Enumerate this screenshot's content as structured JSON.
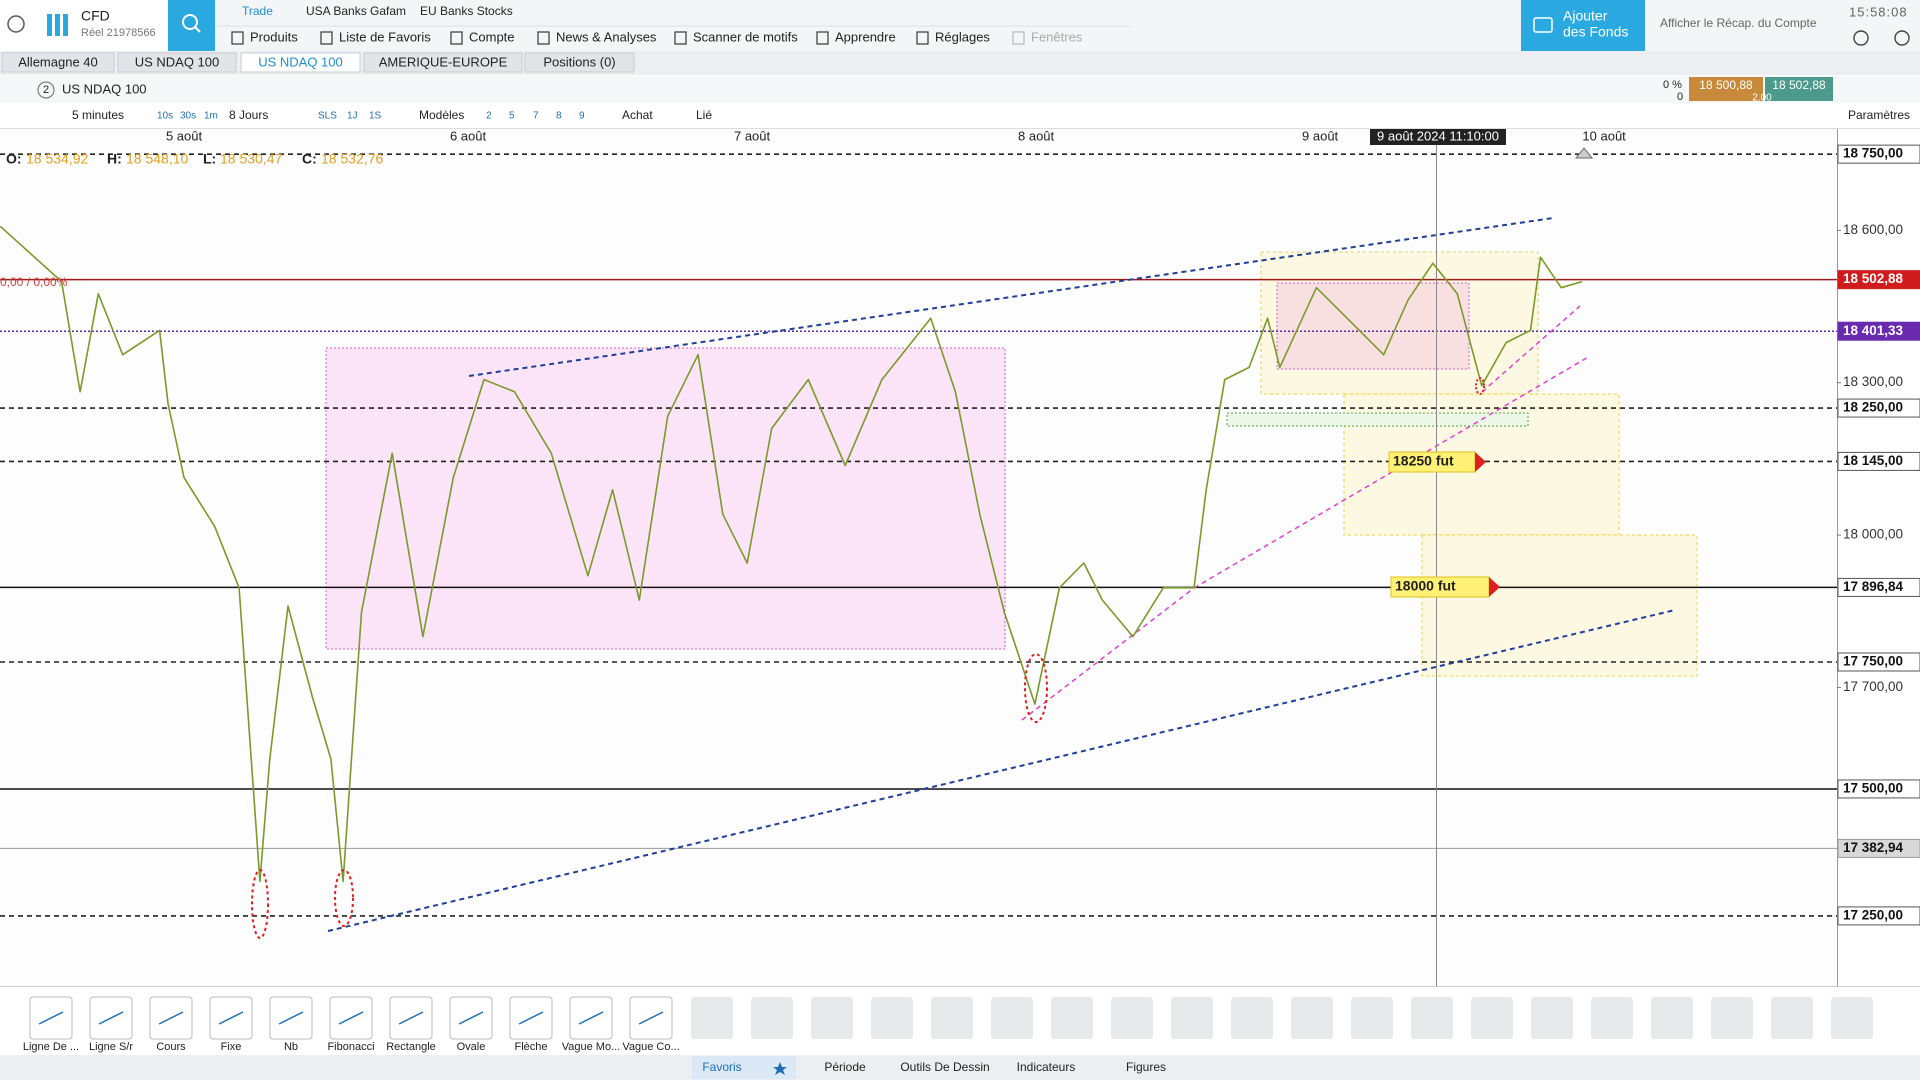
{
  "header": {
    "account_type": "CFD",
    "account_id": "Réel 21978566",
    "tabs": [
      "Trade",
      "USA Banks Gafam",
      "EU Banks Stocks"
    ],
    "menu": [
      "Produits",
      "Liste de Favoris",
      "Compte",
      "News & Analyses",
      "Scanner de motifs",
      "Apprendre",
      "Réglages",
      "Fenêtres"
    ],
    "add_funds": [
      "Ajouter",
      "des Fonds"
    ],
    "summary": "Afficher le Récap. du Compte",
    "clock": "15:58:08"
  },
  "instrument_tabs": [
    "Allemagne 40",
    "US NDAQ 100",
    "US NDAQ 100",
    "AMERIQUE-EUROPE",
    "Positions (0)"
  ],
  "chart_toolbar": {
    "layout_number": "2",
    "instrument": "US NDAQ 100",
    "change_pct": "0 %",
    "change": "0",
    "bid": "18 500,88",
    "ask": "18 502,88",
    "spread": "2.00"
  },
  "chart_subtoolbar": {
    "interval": "5 minutes",
    "quick_intervals": [
      "10s",
      "30s",
      "1m"
    ],
    "range": "8 Jours",
    "periods": [
      "SLS",
      "1J",
      "1S"
    ],
    "templates": "Modèles",
    "layouts": [
      "2",
      "5",
      "7",
      "8",
      "9"
    ],
    "order": "Achat",
    "link": "Lié",
    "settings": "Paramètres"
  },
  "chart_data": {
    "type": "line",
    "color": "#7a9a2a",
    "ohlc": [
      {
        "key": "O:",
        "text": "18 534,92"
      },
      {
        "key": "H:",
        "text": "18 548,10"
      },
      {
        "key": "L:",
        "text": "18 530,47"
      },
      {
        "key": "C:",
        "text": "18 532,76"
      }
    ],
    "change_label": "0,00 / 0,00%",
    "crosshair_label": "9 août 2024 11:10:00",
    "xlim": [
      -0.648,
      5.82
    ],
    "ylim": [
      17112,
      18768
    ],
    "xticks": [
      {
        "value": 0,
        "label": "5 août"
      },
      {
        "value": 1,
        "label": "6 août"
      },
      {
        "value": 2,
        "label": "7 août"
      },
      {
        "value": 3,
        "label": "8 août"
      },
      {
        "value": 4,
        "label": "9 août"
      },
      {
        "value": 5,
        "label": "10 août"
      }
    ],
    "yticks": [
      {
        "value": 18750,
        "label": "18 750,00",
        "line": "dashed",
        "badge": "box"
      },
      {
        "value": 18600,
        "label": "18 600,00"
      },
      {
        "value": 18502.88,
        "label": "18 502,88",
        "line": "solid-red",
        "badge": "red"
      },
      {
        "value": 18401.33,
        "label": "18 401,33",
        "line": "dotted-purple",
        "badge": "purple"
      },
      {
        "value": 18300,
        "label": "18 300,00"
      },
      {
        "value": 18250,
        "label": "18 250,00",
        "line": "dashed",
        "badge": "box"
      },
      {
        "value": 18145,
        "label": "18 145,00",
        "line": "dashed",
        "badge": "box"
      },
      {
        "value": 18000,
        "label": "18 000,00"
      },
      {
        "value": 17896.84,
        "label": "17 896,84",
        "line": "solid",
        "badge": "box"
      },
      {
        "value": 17750,
        "label": "17 750,00",
        "line": "dashed",
        "badge": "box"
      },
      {
        "value": 17700,
        "label": "17 700,00"
      },
      {
        "value": 17500,
        "label": "17 500,00",
        "line": "solid",
        "badge": "box"
      },
      {
        "value": 17382.94,
        "label": "17 382,94",
        "line": "solid-gray",
        "badge": "gray"
      },
      {
        "value": 17250,
        "label": "17 250,00",
        "line": "dashed",
        "badge": "box"
      }
    ],
    "annotations": [
      "18250 fut",
      "18000 fut"
    ],
    "x": [
      -0.647,
      -0.431,
      -0.366,
      -0.302,
      -0.216,
      -0.086,
      -0.056,
      0,
      0.108,
      0.194,
      0.267,
      0.302,
      0.366,
      0.453,
      0.517,
      0.56,
      0.625,
      0.733,
      0.841,
      0.948,
      1.056,
      1.164,
      1.293,
      1.422,
      1.509,
      1.603,
      1.703,
      1.81,
      1.897,
      1.983,
      2.069,
      2.198,
      2.328,
      2.457,
      2.629,
      2.716,
      2.802,
      2.888,
      2.996,
      3.082,
      3.168,
      3.233,
      3.341,
      3.448,
      3.556,
      3.599,
      3.664,
      3.75,
      3.815,
      3.858,
      3.987,
      4.095,
      4.224,
      4.31,
      4.397,
      4.483,
      4.569,
      4.655,
      4.741,
      4.776,
      4.849,
      4.922
    ],
    "values": [
      18608,
      18499,
      18282,
      18475,
      18355,
      18403,
      18258,
      18113,
      18017,
      17896,
      17318,
      17559,
      17860,
      17679,
      17559,
      17318,
      17848,
      18161,
      17800,
      18113,
      18306,
      18282,
      18161,
      17920,
      18089,
      17872,
      18234,
      18355,
      18041,
      17945,
      18210,
      18306,
      18137,
      18306,
      18427,
      18282,
      18041,
      17848,
      17667,
      17896,
      17945,
      17872,
      17800,
      17896,
      17896,
      18089,
      18306,
      18330,
      18427,
      18330,
      18487,
      18427,
      18355,
      18463,
      18535,
      18475,
      18294,
      18379,
      18403,
      18547,
      18487,
      18499
    ]
  },
  "drawing_tools": [
    "Ligne De ...",
    "Ligne S/r",
    "Cours",
    "Fixe",
    "Nb",
    "Fibonacci",
    "Rectangle",
    "Ovale",
    "Flèche",
    "Vague Mo...",
    "Vague Co..."
  ],
  "bottom_tabs": [
    "Favoris",
    "Période",
    "Outils De Dessin",
    "Indicateurs",
    "Figures"
  ]
}
